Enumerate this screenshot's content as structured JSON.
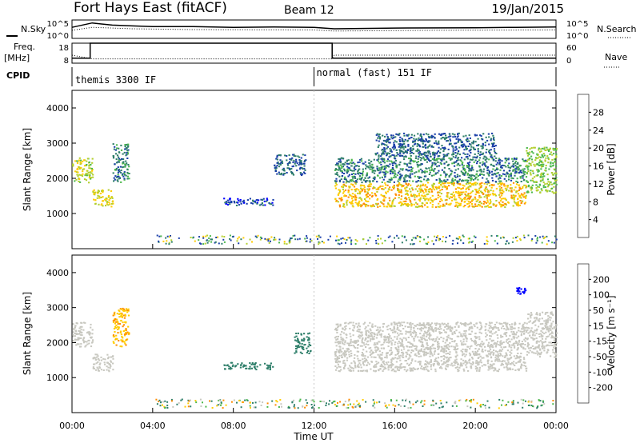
{
  "header": {
    "station": "Fort Hays East (fitACF)",
    "beam": "Beam 12",
    "date": "19/Jan/2015"
  },
  "noise_panel": {
    "left_label": "N.Sky",
    "right_label": "N.Search",
    "y_ticks_left": [
      "10^5",
      "10^0"
    ],
    "y_ticks_right": [
      "10^5",
      "10^0"
    ]
  },
  "freq_panel": {
    "left_label_line1": "Freq.",
    "left_label_line2": "[MHz]",
    "right_label": "Nave",
    "y_ticks_left": [
      "18",
      "8"
    ],
    "y_ticks_right": [
      "60",
      "0"
    ]
  },
  "cpid": {
    "label": "CPID",
    "modes": [
      {
        "name": "themis 3300 IF",
        "start_hour": 0
      },
      {
        "name": "normal (fast) 151 IF",
        "start_hour": 12
      }
    ]
  },
  "power_panel": {
    "ylabel": "Slant Range [km]",
    "yticks": [
      "4000",
      "3000",
      "2000",
      "1000"
    ],
    "colorbar_label": "Power [dB]",
    "colorbar_ticks": [
      "28",
      "24",
      "20",
      "16",
      "12",
      "8",
      "4"
    ],
    "colorbar_colors": [
      "#0000ff",
      "#1a3fa8",
      "#2f7f6a",
      "#4cb84c",
      "#b3cf2e",
      "#ffcc00",
      "#ff8c00",
      "#ff3a00",
      "#e60000"
    ]
  },
  "velocity_panel": {
    "ylabel": "Slant Range [km]",
    "yticks": [
      "4000",
      "3000",
      "2000",
      "1000"
    ],
    "colorbar_label": "Velocity [m s⁻¹]",
    "colorbar_ticks": [
      "200",
      "100",
      "50",
      "15",
      "-15",
      "-50",
      "-100",
      "-200"
    ],
    "colorbar_colors": [
      "#0000ff",
      "#1a3fa8",
      "#2f7f6a",
      "#4cb84c",
      "#c8c8c0",
      "#ffcc00",
      "#ff8c00",
      "#ff3a00",
      "#e60000"
    ]
  },
  "x_axis": {
    "label": "Time UT",
    "ticks": [
      "00:00",
      "04:00",
      "08:00",
      "12:00",
      "16:00",
      "20:00",
      "00:00"
    ]
  },
  "chart_data": {
    "type": "heatmap",
    "x_unit": "hours UT",
    "xlim": [
      0,
      24
    ],
    "range_unit": "km",
    "ylim": [
      0,
      4500
    ],
    "noise": {
      "sky": [
        [
          0,
          3
        ],
        [
          1,
          4.2
        ],
        [
          2,
          3.6
        ],
        [
          3,
          3.4
        ],
        [
          4,
          3.2
        ],
        [
          6,
          3.2
        ],
        [
          8,
          3.0
        ],
        [
          10,
          3.1
        ],
        [
          12,
          3.0
        ],
        [
          13,
          2.6
        ],
        [
          16,
          2.8
        ],
        [
          20,
          2.9
        ],
        [
          22,
          3.0
        ],
        [
          24,
          3.1
        ]
      ],
      "search": [
        [
          0,
          2.2
        ],
        [
          1,
          3.0
        ],
        [
          3,
          2.6
        ],
        [
          6,
          2.4
        ],
        [
          12,
          2.3
        ],
        [
          13,
          2.0
        ],
        [
          18,
          2.2
        ],
        [
          24,
          2.3
        ]
      ]
    },
    "frequency": [
      [
        0,
        10.5
      ],
      [
        0.9,
        10.5
      ],
      [
        0.9,
        18
      ],
      [
        12.9,
        18
      ],
      [
        12.9,
        10.5
      ],
      [
        24,
        10.5
      ]
    ],
    "nave": [
      [
        0,
        24
      ],
      [
        1,
        13
      ],
      [
        12.9,
        13
      ],
      [
        13,
        24
      ],
      [
        24,
        24
      ]
    ],
    "power_regions": [
      {
        "t0": 0.0,
        "t1": 1.0,
        "r0": 1900,
        "r1": 2600,
        "power": 18
      },
      {
        "t0": 1.0,
        "t1": 2.0,
        "r0": 1200,
        "r1": 1700,
        "power": 20
      },
      {
        "t0": 2.0,
        "t1": 2.8,
        "r0": 1900,
        "r1": 3000,
        "power": 10
      },
      {
        "t0": 7.5,
        "t1": 10.0,
        "r0": 1250,
        "r1": 1450,
        "power": 6
      },
      {
        "t0": 10.0,
        "t1": 11.6,
        "r0": 2100,
        "r1": 2700,
        "power": 8
      },
      {
        "t0": 13.0,
        "t1": 22.5,
        "r0": 1200,
        "r1": 1900,
        "power": 22
      },
      {
        "t0": 13.0,
        "t1": 22.5,
        "r0": 1900,
        "r1": 2600,
        "power": 10
      },
      {
        "t0": 15.0,
        "t1": 21.0,
        "r0": 2600,
        "r1": 3300,
        "power": 8
      },
      {
        "t0": 22.5,
        "t1": 24.0,
        "r0": 1600,
        "r1": 2900,
        "power": 16
      }
    ],
    "velocity_regions": [
      {
        "t0": 0.0,
        "t1": 1.0,
        "r0": 1900,
        "r1": 2600,
        "velocity": 0
      },
      {
        "t0": 1.0,
        "t1": 2.0,
        "r0": 1200,
        "r1": 1700,
        "velocity": 0
      },
      {
        "t0": 2.0,
        "t1": 2.8,
        "r0": 1900,
        "r1": 3000,
        "velocity": -30
      },
      {
        "t0": 7.5,
        "t1": 10.0,
        "r0": 1250,
        "r1": 1450,
        "velocity": 40
      },
      {
        "t0": 11.0,
        "t1": 11.8,
        "r0": 1700,
        "r1": 2300,
        "velocity": 40
      },
      {
        "t0": 13.0,
        "t1": 22.5,
        "r0": 1200,
        "r1": 2600,
        "velocity": 0
      },
      {
        "t0": 22.0,
        "t1": 22.5,
        "r0": 3400,
        "r1": 3600,
        "velocity": 200
      },
      {
        "t0": 22.5,
        "t1": 24.0,
        "r0": 1600,
        "r1": 2900,
        "velocity": 0
      }
    ],
    "ground_scatter_band": {
      "r0": 150,
      "r1": 400,
      "t0": 4.0,
      "t1": 24.0
    }
  }
}
